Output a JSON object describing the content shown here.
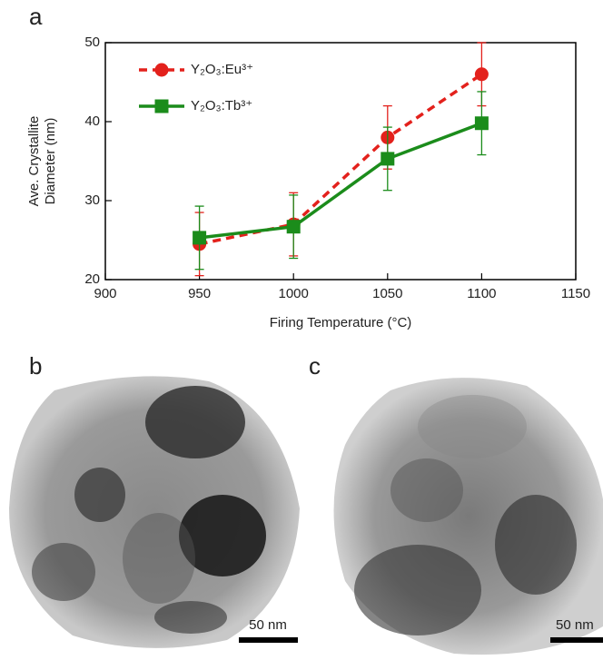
{
  "chart_data": {
    "type": "line",
    "xlabel": "Firing Temperature (°C)",
    "ylabel": [
      "Ave. Crystallite",
      "Diameter (nm)"
    ],
    "x": [
      950,
      1000,
      1050,
      1100
    ],
    "series": [
      {
        "name": "Y₂O₃:Eu³⁺",
        "color": "#e3211c",
        "dash": true,
        "marker": "circle",
        "values": [
          24.5,
          27,
          38,
          46
        ],
        "errors": [
          4,
          4,
          4,
          4
        ]
      },
      {
        "name": "Y₂O₃:Tb³⁺",
        "color": "#1b8c1b",
        "dash": false,
        "marker": "square",
        "values": [
          25.3,
          26.7,
          35.3,
          39.8
        ],
        "errors": [
          4,
          4,
          4,
          4
        ]
      }
    ],
    "xlim": [
      900,
      1150
    ],
    "xticks": [
      900,
      950,
      1000,
      1050,
      1100,
      1150
    ],
    "ylim": [
      20,
      50
    ],
    "yticks": [
      20,
      30,
      40,
      50
    ],
    "legend": "upper-left"
  },
  "panels": {
    "labels": [
      "a",
      "b",
      "c"
    ],
    "scale_bars": [
      "50 nm",
      "50 nm"
    ]
  }
}
